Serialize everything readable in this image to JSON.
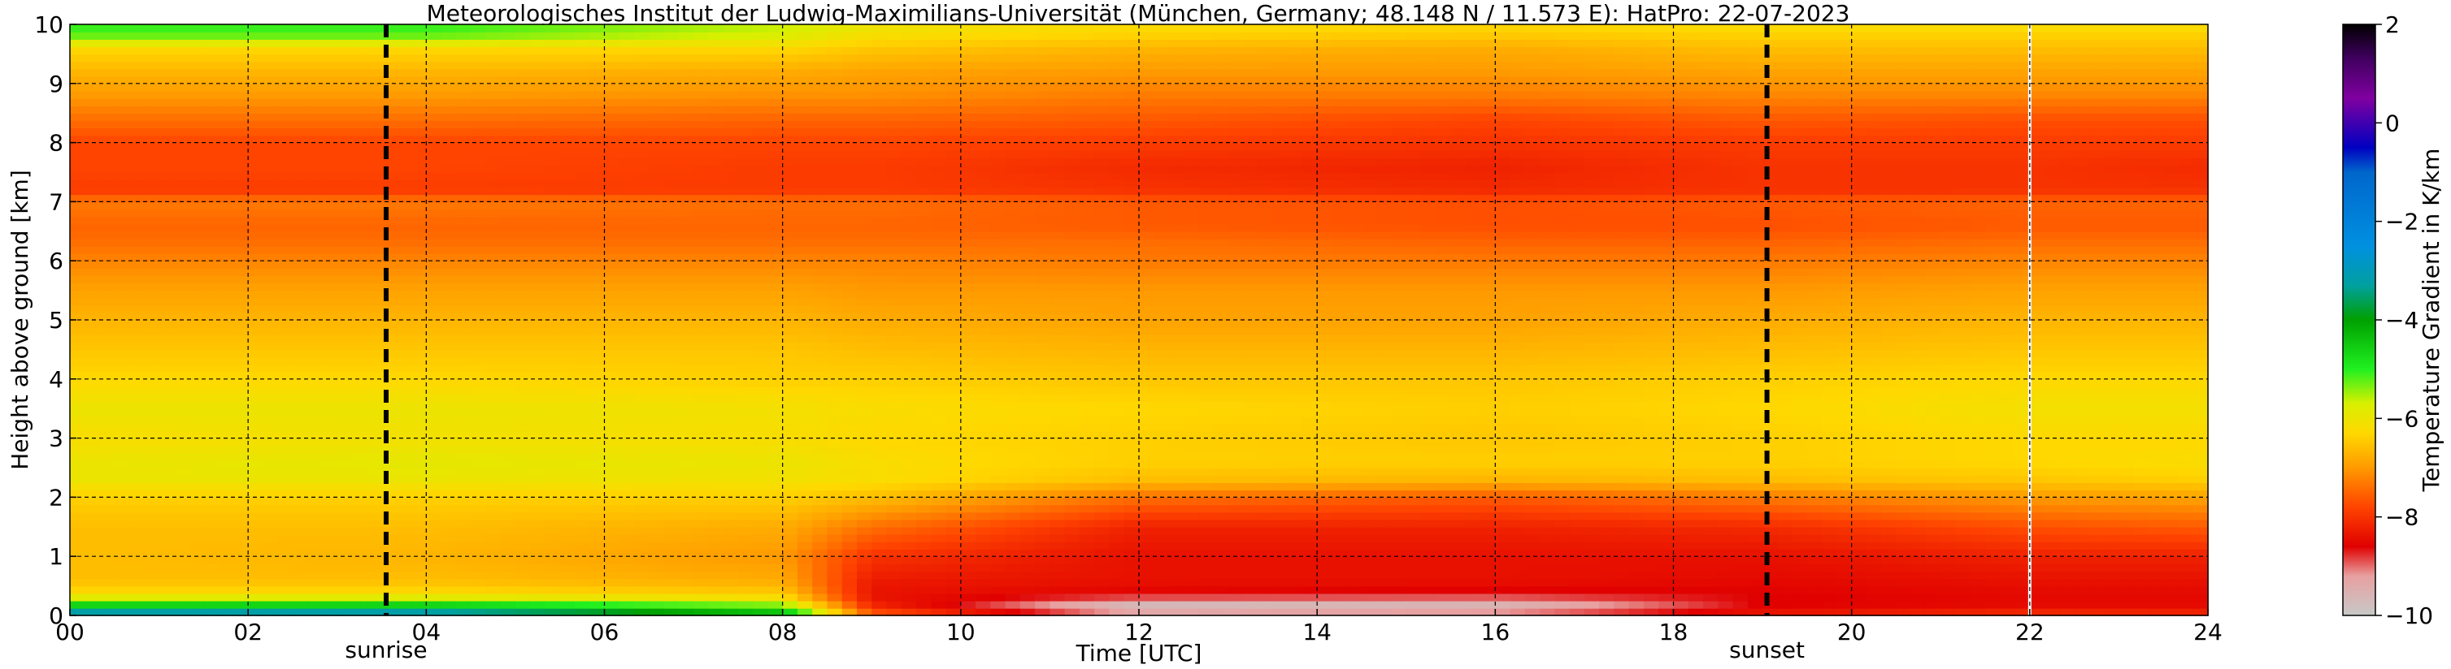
{
  "chart_data": {
    "type": "heatmap",
    "title": "Meteorologisches Institut der Ludwig-Maximilians-Universität (München, Germany; 48.148 N / 11.573 E):    HatPro: 22-07-2023",
    "xlabel": "Time [UTC]",
    "ylabel": "Height above ground [km]",
    "xlim": [
      0,
      24
    ],
    "ylim": [
      0,
      10
    ],
    "xticks": [
      "00",
      "02",
      "04",
      "06",
      "08",
      "10",
      "12",
      "14",
      "16",
      "18",
      "20",
      "22",
      "24"
    ],
    "yticks": [
      "0",
      "1",
      "2",
      "3",
      "4",
      "5",
      "6",
      "7",
      "8",
      "9",
      "10"
    ],
    "grid": true,
    "events": [
      {
        "label": "sunrise",
        "time_utc": 3.55
      },
      {
        "label": "sunset",
        "time_utc": 19.05
      }
    ],
    "colorbar": {
      "label": "Temperature Gradient in K/km",
      "range": [
        -10,
        2
      ],
      "ticks": [
        "2",
        "0",
        "−2",
        "−4",
        "−6",
        "−8",
        "−10"
      ],
      "stops": [
        {
          "v": -10,
          "c": "#c8c8c8"
        },
        {
          "v": -9.2,
          "c": "#e8a0a0"
        },
        {
          "v": -8.6,
          "c": "#e00000"
        },
        {
          "v": -7.8,
          "c": "#ff4400"
        },
        {
          "v": -7.0,
          "c": "#ff9a00"
        },
        {
          "v": -6.3,
          "c": "#ffd800"
        },
        {
          "v": -5.7,
          "c": "#d8f000"
        },
        {
          "v": -5.0,
          "c": "#20f020"
        },
        {
          "v": -4.0,
          "c": "#00a000"
        },
        {
          "v": -3.3,
          "c": "#00a0a0"
        },
        {
          "v": -2.5,
          "c": "#0090e0"
        },
        {
          "v": -1.0,
          "c": "#0066cc"
        },
        {
          "v": -0.5,
          "c": "#0000c0"
        },
        {
          "v": 0.5,
          "c": "#8000a0"
        },
        {
          "v": 1.3,
          "c": "#400060"
        },
        {
          "v": 2,
          "c": "#000000"
        }
      ]
    },
    "profile_km": [
      0,
      0.2,
      0.35,
      0.6,
      1.0,
      1.5,
      2.0,
      2.3,
      2.6,
      3.0,
      3.5,
      4.0,
      4.5,
      5.0,
      5.5,
      6.0,
      6.3,
      6.6,
      7.0,
      7.2,
      7.6,
      8.0,
      8.4,
      8.8,
      9.2,
      9.6,
      9.8,
      10.0
    ],
    "profiles": [
      {
        "time_utc": 0,
        "values": [
          -2.5,
          -4.8,
          -6.2,
          -6.6,
          -6.6,
          -6.6,
          -6.4,
          -6.0,
          -6.0,
          -6.2,
          -6.0,
          -6.3,
          -6.5,
          -6.7,
          -6.9,
          -7.2,
          -7.4,
          -7.5,
          -7.3,
          -7.9,
          -7.8,
          -7.8,
          -7.4,
          -7.0,
          -6.7,
          -6.3,
          -5.3,
          -5.0
        ]
      },
      {
        "time_utc": 4,
        "values": [
          -2.5,
          -4.8,
          -6.2,
          -6.6,
          -6.7,
          -6.6,
          -6.4,
          -6.0,
          -5.9,
          -6.1,
          -6.0,
          -6.3,
          -6.5,
          -6.7,
          -6.9,
          -7.2,
          -7.4,
          -7.5,
          -7.3,
          -7.9,
          -7.8,
          -7.8,
          -7.4,
          -7.0,
          -6.7,
          -6.3,
          -5.3,
          -5.0
        ]
      },
      {
        "time_utc": 8,
        "values": [
          -4.0,
          -5.5,
          -6.4,
          -6.8,
          -7.0,
          -6.8,
          -6.4,
          -6.1,
          -6.0,
          -6.2,
          -6.1,
          -6.4,
          -6.5,
          -6.7,
          -6.9,
          -7.2,
          -7.4,
          -7.5,
          -7.4,
          -7.9,
          -7.9,
          -7.8,
          -7.5,
          -7.1,
          -6.8,
          -6.3,
          -5.8,
          -5.6
        ]
      },
      {
        "time_utc": 9,
        "values": [
          -7.5,
          -8.2,
          -8.4,
          -8.3,
          -8.0,
          -7.4,
          -6.6,
          -6.2,
          -6.2,
          -6.3,
          -6.2,
          -6.4,
          -6.6,
          -6.8,
          -7.0,
          -7.2,
          -7.4,
          -7.5,
          -7.4,
          -7.9,
          -7.9,
          -7.8,
          -7.5,
          -7.1,
          -6.9,
          -6.5,
          -6.2,
          -6.0
        ]
      },
      {
        "time_utc": 12,
        "values": [
          -9.2,
          -9.7,
          -8.6,
          -8.4,
          -8.4,
          -8.2,
          -7.4,
          -6.6,
          -6.4,
          -6.4,
          -6.3,
          -6.5,
          -6.7,
          -6.9,
          -7.0,
          -7.3,
          -7.4,
          -7.6,
          -7.6,
          -8.0,
          -8.1,
          -7.9,
          -7.6,
          -7.3,
          -7.0,
          -6.7,
          -6.4,
          -6.2
        ]
      },
      {
        "time_utc": 16,
        "values": [
          -9.0,
          -9.6,
          -8.7,
          -8.4,
          -8.4,
          -8.2,
          -7.6,
          -6.7,
          -6.4,
          -6.5,
          -6.4,
          -6.5,
          -6.7,
          -6.9,
          -7.0,
          -7.3,
          -7.5,
          -7.7,
          -7.7,
          -8.1,
          -8.2,
          -8.0,
          -7.8,
          -7.3,
          -7.0,
          -6.8,
          -6.5,
          -6.3
        ]
      },
      {
        "time_utc": 19,
        "values": [
          -8.3,
          -8.6,
          -8.6,
          -8.5,
          -8.4,
          -8.1,
          -7.3,
          -6.6,
          -6.4,
          -6.4,
          -6.3,
          -6.4,
          -6.6,
          -6.8,
          -7.0,
          -7.3,
          -7.5,
          -7.7,
          -7.6,
          -8.0,
          -8.0,
          -7.9,
          -7.6,
          -7.2,
          -6.9,
          -6.6,
          -6.4,
          -6.2
        ]
      },
      {
        "time_utc": 22,
        "values": [
          -8.0,
          -8.5,
          -8.5,
          -8.4,
          -8.2,
          -7.7,
          -7.0,
          -6.5,
          -6.3,
          -6.3,
          -6.1,
          -6.3,
          -6.5,
          -6.7,
          -6.9,
          -7.2,
          -7.4,
          -7.6,
          -7.5,
          -8.0,
          -8.0,
          -7.9,
          -7.7,
          -7.2,
          -6.9,
          -6.6,
          -6.4,
          -6.2
        ]
      },
      {
        "time_utc": 24,
        "values": [
          -8.1,
          -8.5,
          -8.5,
          -8.4,
          -8.2,
          -7.6,
          -6.9,
          -6.4,
          -6.2,
          -6.3,
          -6.1,
          -6.3,
          -6.5,
          -6.7,
          -6.9,
          -7.2,
          -7.4,
          -7.6,
          -7.5,
          -8.0,
          -8.1,
          -7.9,
          -7.7,
          -7.2,
          -6.9,
          -6.6,
          -6.4,
          -6.2
        ]
      }
    ],
    "missing_data_times_utc": [
      22.0
    ]
  }
}
